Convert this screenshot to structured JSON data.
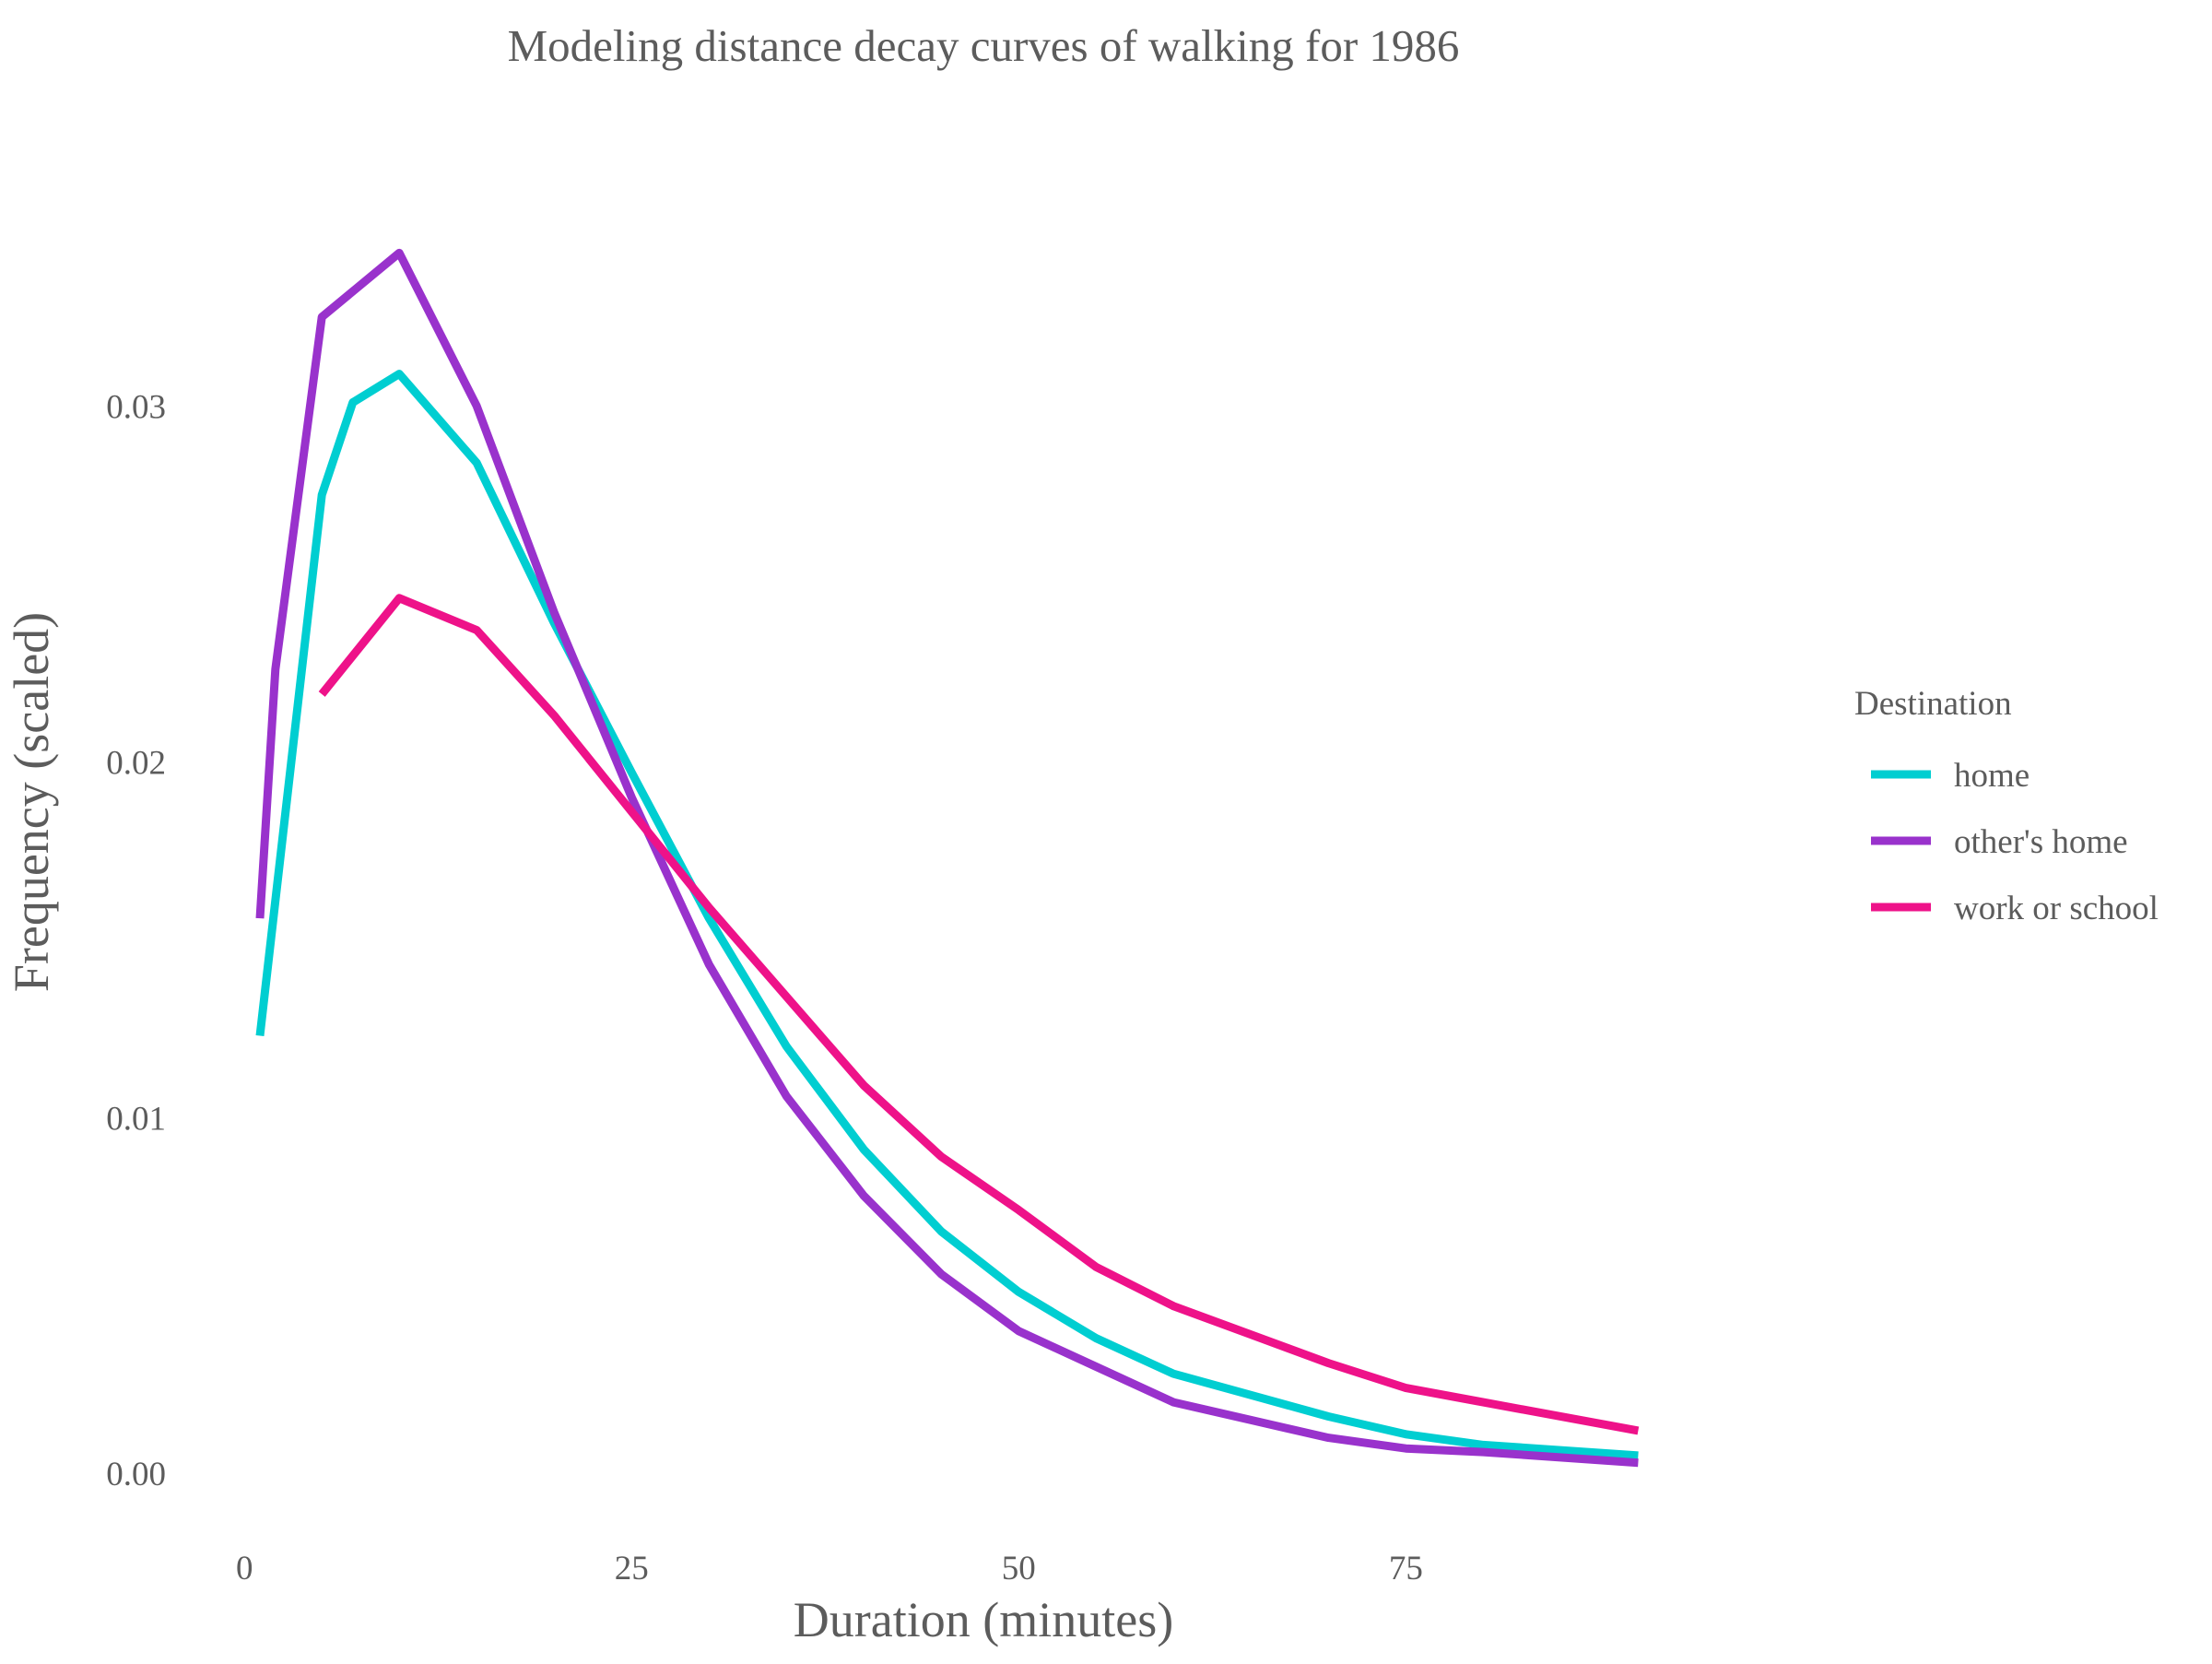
{
  "chart_data": {
    "type": "line",
    "title": "Modeling distance decay curves of walking for 1986",
    "xlabel": "Duration (minutes)",
    "ylabel": "Frequency (scaled)",
    "xlim": [
      -1.5,
      97
    ],
    "ylim": [
      -0.0016,
      0.0383
    ],
    "x_ticks": [
      0,
      25,
      50,
      75
    ],
    "x_tick_labels": [
      "0",
      "25",
      "50",
      "75"
    ],
    "y_ticks": [
      0.0,
      0.01,
      0.02,
      0.03
    ],
    "y_tick_labels": [
      "0.00",
      "0.01",
      "0.02",
      "0.03"
    ],
    "grid": false,
    "legend": {
      "title": "Destination",
      "placement": "right"
    },
    "series": [
      {
        "name": "home",
        "color": "#00CED1",
        "x": [
          1,
          5,
          7,
          10,
          15,
          20,
          25,
          30,
          35,
          40,
          45,
          50,
          55,
          60,
          65,
          70,
          75,
          80,
          90
        ],
        "y": [
          0.0123,
          0.0275,
          0.0301,
          0.0309,
          0.0284,
          0.0239,
          0.0197,
          0.0156,
          0.012,
          0.0091,
          0.0068,
          0.0051,
          0.0038,
          0.0028,
          0.0022,
          0.0016,
          0.0011,
          0.0008,
          0.0005
        ]
      },
      {
        "name": "other's home",
        "color": "#9932CC",
        "x": [
          1,
          2,
          5,
          10,
          15,
          20,
          25,
          30,
          35,
          40,
          45,
          50,
          55,
          60,
          65,
          70,
          75,
          80,
          90
        ],
        "y": [
          0.0156,
          0.0226,
          0.0325,
          0.0343,
          0.03,
          0.0242,
          0.019,
          0.0143,
          0.0106,
          0.0078,
          0.0056,
          0.004,
          0.003,
          0.002,
          0.0015,
          0.001,
          0.0007,
          0.0006,
          0.0003
        ]
      },
      {
        "name": "work or school",
        "color": "#EE1289",
        "x": [
          5,
          10,
          15,
          20,
          25,
          30,
          35,
          40,
          45,
          50,
          55,
          60,
          65,
          70,
          75,
          80,
          90
        ],
        "y": [
          0.0219,
          0.0246,
          0.0237,
          0.0213,
          0.0186,
          0.0159,
          0.0134,
          0.0109,
          0.0089,
          0.0074,
          0.0058,
          0.0047,
          0.0039,
          0.0031,
          0.0024,
          0.002,
          0.0012
        ]
      }
    ]
  }
}
